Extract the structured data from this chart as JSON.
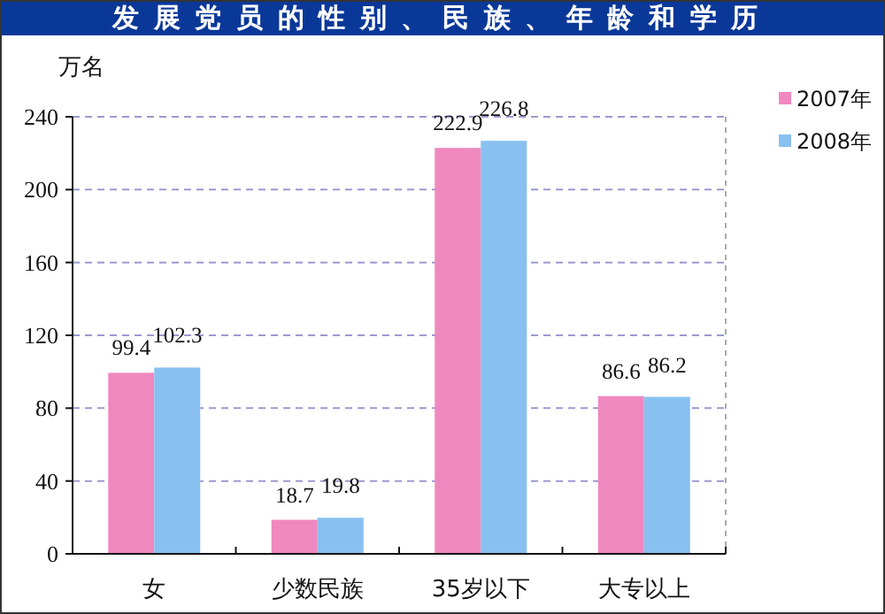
{
  "chart_data": {
    "type": "bar",
    "title": "发展党员的性别、民族、年龄和学历",
    "ylabel": "万名",
    "categories": [
      "女",
      "少数民族",
      "35岁以下",
      "大专以上"
    ],
    "series": [
      {
        "name": "2007年",
        "color": "#f088c0",
        "values": [
          99.4,
          18.7,
          222.9,
          86.6
        ]
      },
      {
        "name": "2008年",
        "color": "#88c0f0",
        "values": [
          102.3,
          19.8,
          226.8,
          86.2
        ]
      }
    ],
    "ylim": [
      0,
      240
    ],
    "yticks": [
      0,
      40,
      80,
      120,
      160,
      200,
      240
    ],
    "grid": "y",
    "legend": "top right",
    "data_labels": true
  }
}
